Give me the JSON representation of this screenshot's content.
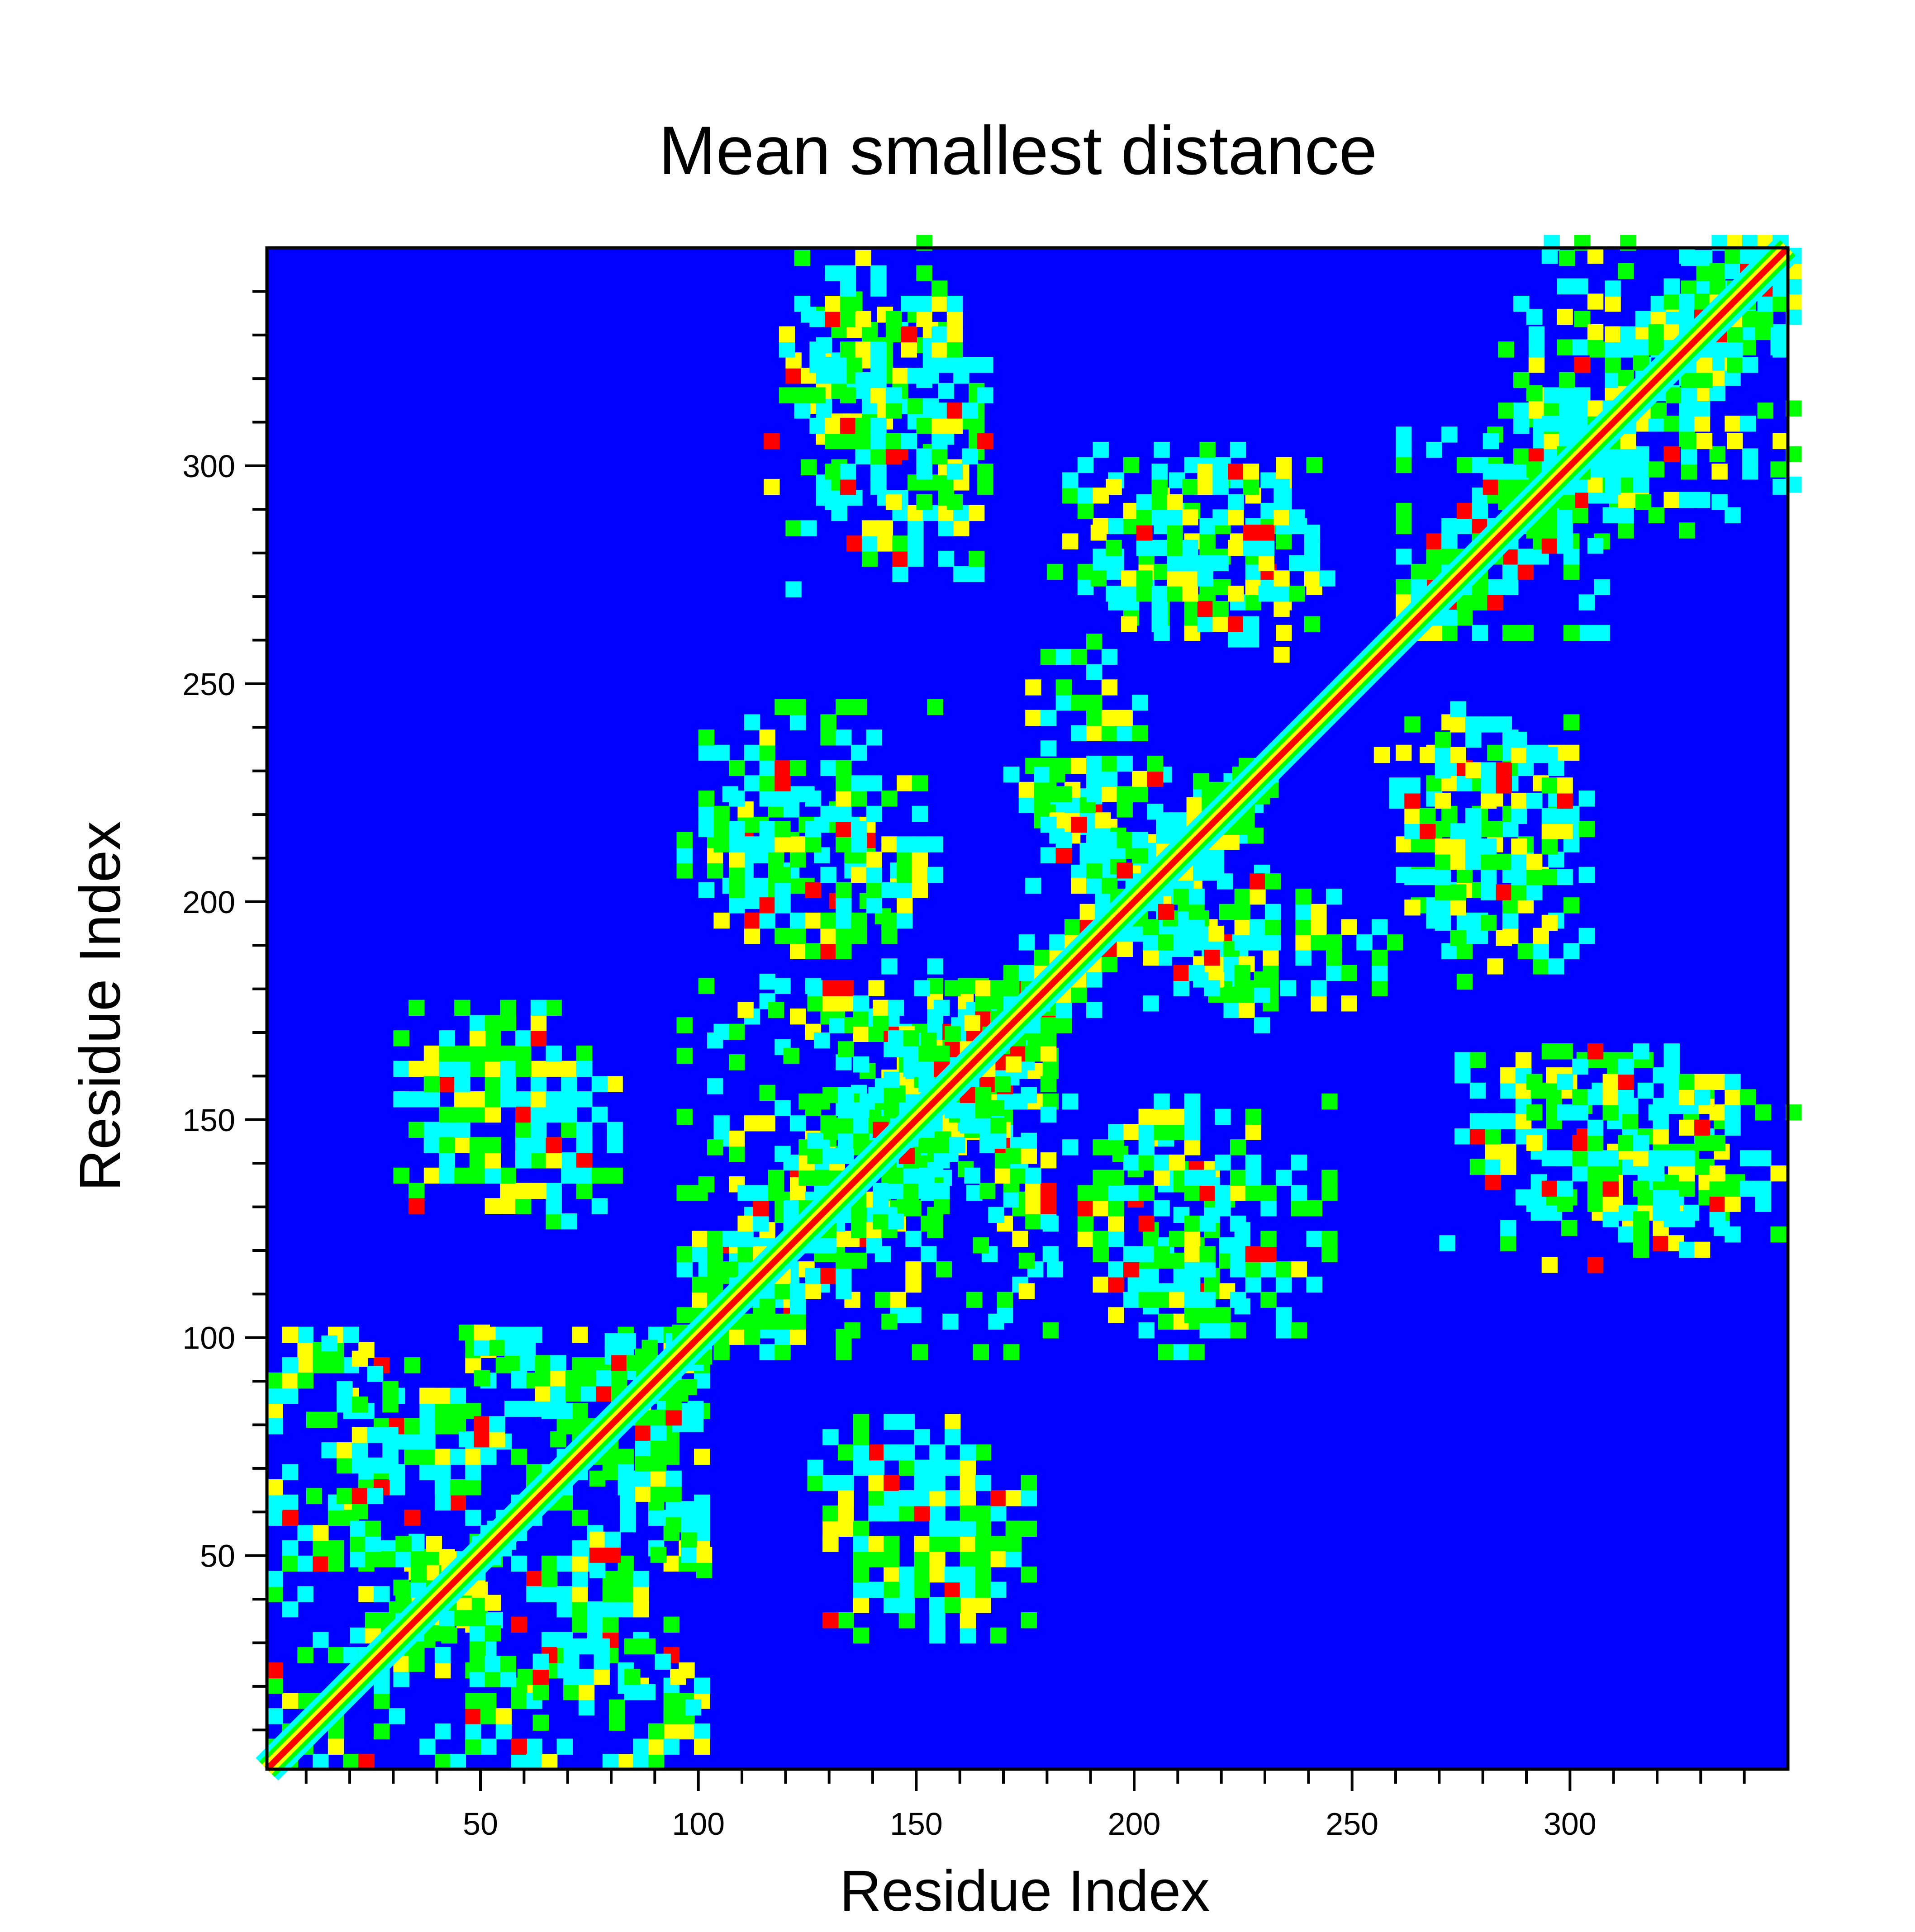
{
  "chart_data": {
    "type": "heatmap",
    "title": "Mean smallest distance",
    "xlabel": "Residue Index",
    "ylabel": "Residue Index",
    "xlim": [
      1,
      350
    ],
    "ylim": [
      1,
      350
    ],
    "x_ticks": [
      50,
      100,
      150,
      200,
      250,
      300
    ],
    "y_ticks": [
      50,
      100,
      150,
      200,
      250,
      300
    ],
    "minor_tick_step": 10,
    "grid": false,
    "colormap": [
      "#0000ff",
      "#00ffff",
      "#00ff00",
      "#ffff00",
      "#ff0000"
    ],
    "colors": {
      "background": "#0000ff",
      "diagonal": "#ff0000",
      "frame": "#000000"
    },
    "contact_regions": [
      {
        "x": [
          1,
          100
        ],
        "y": [
          1,
          100
        ],
        "pattern": "cross-hatch"
      },
      {
        "x": [
          10,
          30
        ],
        "y": [
          55,
          100
        ],
        "pattern": "patch"
      },
      {
        "x": [
          30,
          55
        ],
        "y": [
          20,
          55
        ],
        "pattern": "x-shape"
      },
      {
        "x": [
          75,
          100
        ],
        "y": [
          45,
          100
        ],
        "pattern": "x-shape"
      },
      {
        "x": [
          100,
          175
        ],
        "y": [
          95,
          180
        ],
        "pattern": "band"
      },
      {
        "x": [
          125,
          175
        ],
        "y": [
          140,
          180
        ],
        "pattern": "x-shape"
      },
      {
        "x": [
          30,
          80
        ],
        "y": [
          125,
          175
        ],
        "pattern": "patch"
      },
      {
        "x": [
          95,
          145
        ],
        "y": [
          195,
          225
        ],
        "pattern": "patch"
      },
      {
        "x": [
          175,
          230
        ],
        "y": [
          170,
          230
        ],
        "pattern": "x-shape"
      },
      {
        "x": [
          195,
          260
        ],
        "y": [
          175,
          205
        ],
        "pattern": "patch"
      },
      {
        "x": [
          180,
          245
        ],
        "y": [
          100,
          155
        ],
        "pattern": "patch"
      },
      {
        "x": [
          120,
          165
        ],
        "y": [
          270,
          340
        ],
        "pattern": "patch"
      },
      {
        "x": [
          180,
          240
        ],
        "y": [
          260,
          305
        ],
        "pattern": "patch"
      },
      {
        "x": [
          260,
          300
        ],
        "y": [
          260,
          310
        ],
        "pattern": "band"
      },
      {
        "x": [
          280,
          350
        ],
        "y": [
          290,
          350
        ],
        "pattern": "band"
      },
      {
        "x": [
          290,
          350
        ],
        "y": [
          115,
          165
        ],
        "pattern": "patch"
      },
      {
        "x": [
          255,
          300
        ],
        "y": [
          190,
          245
        ],
        "pattern": "patch"
      },
      {
        "x": [
          125,
          175
        ],
        "y": [
          30,
          80
        ],
        "pattern": "patch"
      }
    ]
  }
}
